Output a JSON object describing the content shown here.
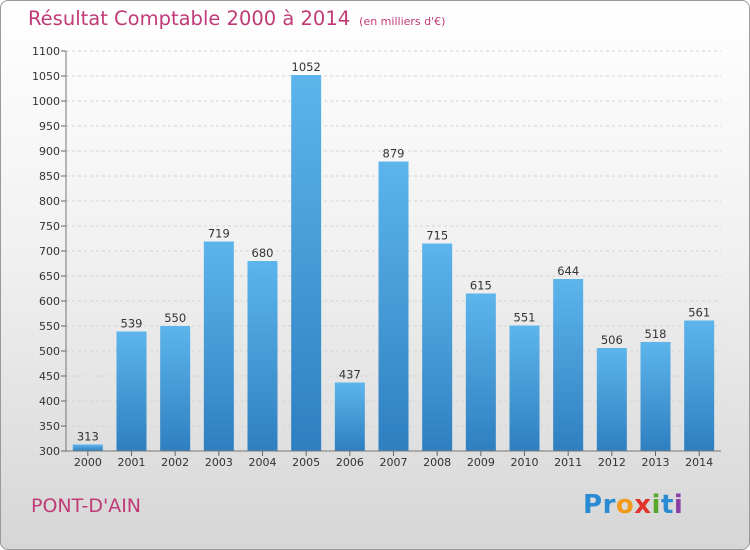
{
  "title": "Résultat Comptable 2000 à 2014",
  "subtitle": "(en milliers d'€)",
  "place": "PONT-D'AIN",
  "logo": {
    "text": "Proxiti",
    "letters": [
      "P",
      "r",
      "o",
      "x",
      "i",
      "t",
      "i"
    ],
    "colors": [
      "#2a8ad2",
      "#2a8ad2",
      "#f19a1c",
      "#e1322c",
      "#5aa82a",
      "#2a8ad2",
      "#8c3fa8"
    ]
  },
  "colors": {
    "title": "#c03a78",
    "bar_top": "#5db5ec",
    "bar_bottom": "#2f7fc0"
  },
  "chart_data": {
    "type": "bar",
    "title": "Résultat Comptable 2000 à 2014",
    "subtitle": "(en milliers d'€)",
    "xlabel": "",
    "ylabel": "",
    "categories": [
      "2000",
      "2001",
      "2002",
      "2003",
      "2004",
      "2005",
      "2006",
      "2007",
      "2008",
      "2009",
      "2010",
      "2011",
      "2012",
      "2013",
      "2014"
    ],
    "values": [
      313,
      539,
      550,
      719,
      680,
      1052,
      437,
      879,
      715,
      615,
      551,
      644,
      506,
      518,
      561
    ],
    "ylim": [
      300,
      1100
    ],
    "yticks": [
      300,
      350,
      400,
      450,
      500,
      550,
      600,
      650,
      700,
      750,
      800,
      850,
      900,
      950,
      1000,
      1050,
      1100
    ],
    "grid": true
  }
}
